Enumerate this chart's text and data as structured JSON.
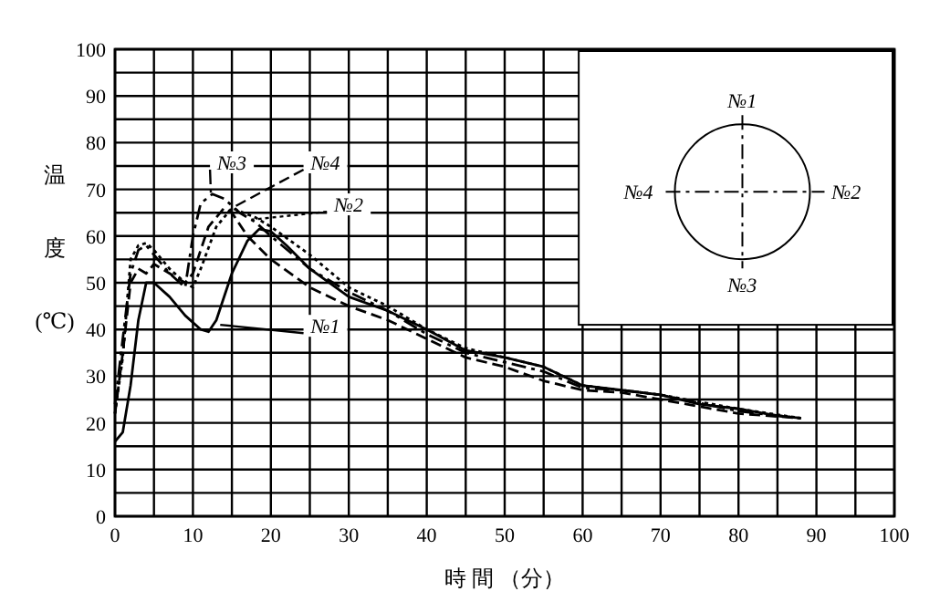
{
  "chart_data": {
    "type": "line",
    "xlabel": "時 間 （分）",
    "ylabel": "温度(℃)",
    "xlim": [
      0,
      100
    ],
    "ylim": [
      0,
      100
    ],
    "xticks": [
      0,
      {
        "value": 5,
        "label": null
      },
      10,
      {
        "value": 15,
        "label": null
      },
      20,
      {
        "value": 25,
        "label": null
      },
      30,
      {
        "value": 35,
        "label": null
      },
      40,
      {
        "value": 45,
        "label": null
      },
      50,
      {
        "value": 55,
        "label": null
      },
      60,
      {
        "value": 65,
        "label": null
      },
      70,
      {
        "value": 75,
        "label": null
      },
      80,
      {
        "value": 85,
        "label": null
      },
      90,
      {
        "value": 95,
        "label": null
      },
      100
    ],
    "yticks": [
      0,
      {
        "value": 5,
        "label": null
      },
      10,
      {
        "value": 15,
        "label": null
      },
      20,
      {
        "value": 25,
        "label": null
      },
      30,
      {
        "value": 35,
        "label": null
      },
      40,
      {
        "value": 45,
        "label": null
      },
      50,
      {
        "value": 55,
        "label": null
      },
      60,
      {
        "value": 65,
        "label": null
      },
      70,
      {
        "value": 75,
        "label": null
      },
      80,
      {
        "value": 85,
        "label": null
      },
      90,
      {
        "value": 95,
        "label": null
      },
      100
    ],
    "grid": true,
    "legend": "top left",
    "series": [
      {
        "name": "№1",
        "color": "#000000",
        "line_style": "solid",
        "x": [
          0,
          1,
          2,
          3,
          4,
          5,
          7,
          9,
          11,
          12,
          13,
          15,
          17,
          18.5,
          20,
          22,
          25,
          30,
          35,
          40,
          45,
          50,
          55,
          60,
          65,
          70,
          75,
          80,
          85,
          88
        ],
        "values": [
          16,
          18,
          28,
          42,
          50,
          50,
          47,
          43,
          40,
          39.5,
          42,
          52,
          59,
          61.5,
          61,
          58,
          53,
          47,
          44,
          40,
          35.5,
          34,
          32,
          28,
          27,
          26,
          24,
          23,
          21.5,
          21
        ]
      },
      {
        "name": "№2",
        "color": "#000000",
        "line_style": "dotted",
        "x": [
          0,
          1,
          2,
          3,
          4,
          5,
          7,
          9,
          10,
          11,
          13,
          15,
          18,
          20,
          25,
          30,
          35,
          40,
          45,
          50,
          55,
          60,
          65,
          70,
          80,
          88
        ],
        "values": [
          22,
          34,
          55,
          58,
          58.5,
          57,
          53,
          50,
          49,
          53,
          62,
          66,
          64,
          62,
          56,
          49,
          45,
          40,
          36,
          34,
          32,
          28,
          27,
          26,
          23,
          21
        ]
      },
      {
        "name": "№3",
        "color": "#000000",
        "line_style": "dashdot",
        "x": [
          0,
          1,
          2,
          3,
          4,
          5,
          7,
          9,
          10,
          11,
          12.5,
          14,
          16,
          18,
          20,
          25,
          30,
          35,
          40,
          45,
          50,
          55,
          60,
          65,
          70,
          80,
          88
        ],
        "values": [
          24,
          38,
          52,
          57,
          58,
          56,
          52,
          49,
          60,
          67,
          69,
          68,
          65,
          63,
          60,
          53,
          48,
          44,
          39,
          35,
          33,
          31,
          27.5,
          27,
          26,
          22.5,
          21
        ]
      },
      {
        "name": "№4",
        "color": "#000000",
        "line_style": "dashed",
        "x": [
          0,
          1,
          2,
          3,
          4,
          5,
          7,
          9,
          10,
          12,
          14,
          15,
          17,
          20,
          25,
          30,
          35,
          40,
          45,
          50,
          55,
          60,
          65,
          70,
          80,
          88
        ],
        "values": [
          22,
          35,
          50,
          53,
          52,
          54,
          52,
          50,
          52,
          62,
          66,
          65,
          60,
          55,
          49,
          45,
          42,
          38,
          34,
          32,
          29,
          27,
          26.5,
          25,
          22,
          21
        ]
      }
    ],
    "annotations": [
      "№1",
      "№2",
      "№3",
      "№4"
    ]
  }
}
